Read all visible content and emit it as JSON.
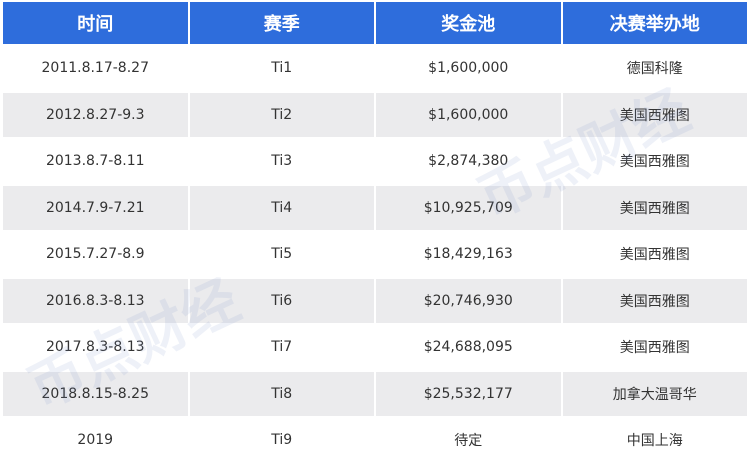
{
  "watermark": "币点财经",
  "headers": [
    "时间",
    "赛季",
    "奖金池",
    "决赛举办地"
  ],
  "rows": [
    [
      "2011.8.17-8.27",
      "Ti1",
      "$1,600,000",
      "德国科隆"
    ],
    [
      "2012.8.27-9.3",
      "Ti2",
      "$1,600,000",
      "美国西雅图"
    ],
    [
      "2013.8.7-8.11",
      "Ti3",
      "$2,874,380",
      "美国西雅图"
    ],
    [
      "2014.7.9-7.21",
      "Ti4",
      "$10,925,709",
      "美国西雅图"
    ],
    [
      "2015.7.27-8.9",
      "Ti5",
      "$18,429,163",
      "美国西雅图"
    ],
    [
      "2016.8.3-8.13",
      "Ti6",
      "$20,746,930",
      "美国西雅图"
    ],
    [
      "2017.8.3-8.13",
      "Ti7",
      "$24,688,095",
      "美国西雅图"
    ],
    [
      "2018.8.15-8.25",
      "Ti8",
      "$25,532,177",
      "加拿大温哥华"
    ],
    [
      "2019",
      "Ti9",
      "待定",
      "中国上海"
    ]
  ],
  "colors": {
    "header": "#2e6ddc",
    "alt_row": "#ebebed"
  }
}
